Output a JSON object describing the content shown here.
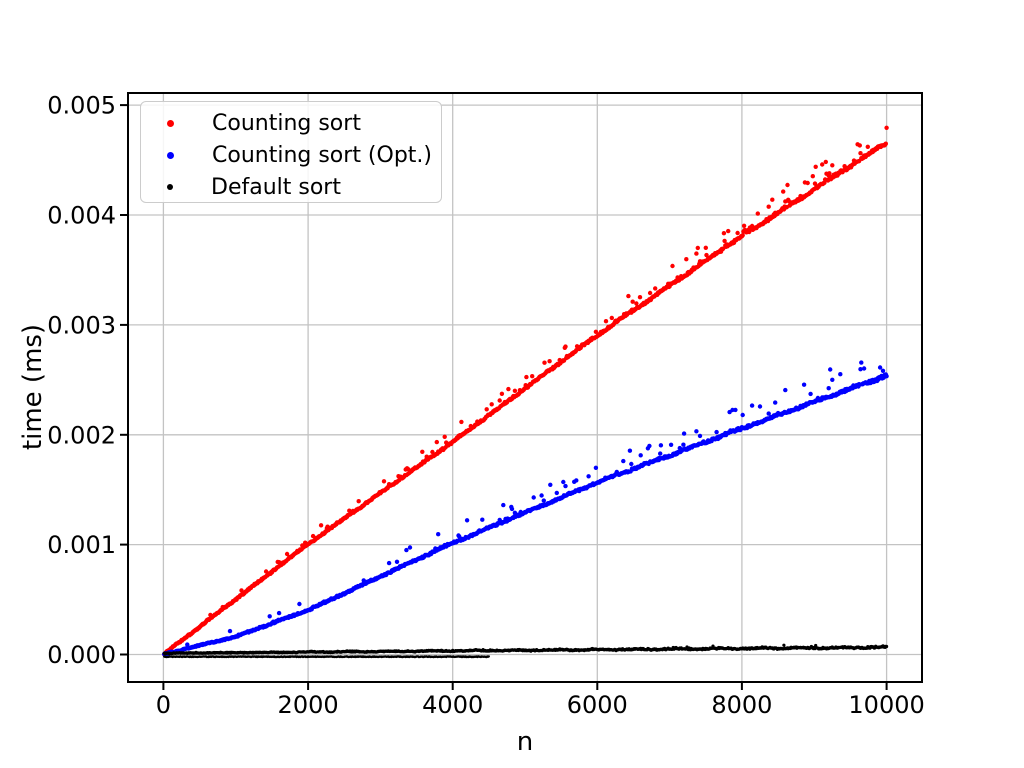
{
  "figure": {
    "background": "#ffffff"
  },
  "chart_data": {
    "type": "scatter",
    "title": "",
    "xlabel": "n",
    "ylabel": "time (ms)",
    "xlim": [
      -490,
      10490
    ],
    "ylim": [
      -0.00025,
      0.00511
    ],
    "xticks": [
      0,
      2000,
      4000,
      6000,
      8000,
      10000
    ],
    "xtick_labels": [
      "0",
      "2000",
      "4000",
      "6000",
      "8000",
      "10000"
    ],
    "yticks": [
      0.0,
      0.001,
      0.002,
      0.003,
      0.004,
      0.005
    ],
    "ytick_labels": [
      "0.000",
      "0.001",
      "0.002",
      "0.003",
      "0.004",
      "0.005"
    ],
    "grid": true,
    "grid_color": "#c3c3c3",
    "axis_color": "#000000",
    "legend_position": "upper-left",
    "x_start": 10,
    "x_end": 10000,
    "x_step": 10,
    "series": [
      {
        "name": "Counting sort",
        "color": "#ff0000",
        "marker_radius": 2.2,
        "legend_marker_px": 7,
        "trend": [
          [
            0,
            0.0
          ],
          [
            2000,
            0.001
          ],
          [
            4000,
            0.00193
          ],
          [
            6000,
            0.0029
          ],
          [
            8000,
            0.0038
          ],
          [
            10000,
            0.00465
          ]
        ],
        "band_noise": 1.3e-05,
        "outlier_rate": 0.22,
        "outlier_max": 0.00022
      },
      {
        "name": "Counting sort (Opt.)",
        "color": "#0000ff",
        "marker_radius": 2.2,
        "legend_marker_px": 7,
        "trend": [
          [
            0,
            0.0
          ],
          [
            1000,
            0.00016
          ],
          [
            2000,
            0.0004
          ],
          [
            4000,
            0.00101
          ],
          [
            6000,
            0.00156
          ],
          [
            8000,
            0.00205
          ],
          [
            10000,
            0.00253
          ]
        ],
        "band_noise": 1.3e-05,
        "outlier_rate": 0.18,
        "outlier_max": 0.00027
      },
      {
        "name": "Default sort",
        "color": "#000000",
        "marker_radius": 1.6,
        "legend_marker_px": 6,
        "trend": [
          [
            0,
            1e-05
          ],
          [
            10000,
            6e-05
          ]
        ],
        "band_noise": 8e-06,
        "outlier_rate": 0.05,
        "outlier_max": 3e-05,
        "sub_band": {
          "x_end": 4500,
          "value": -2e-05
        }
      }
    ]
  }
}
